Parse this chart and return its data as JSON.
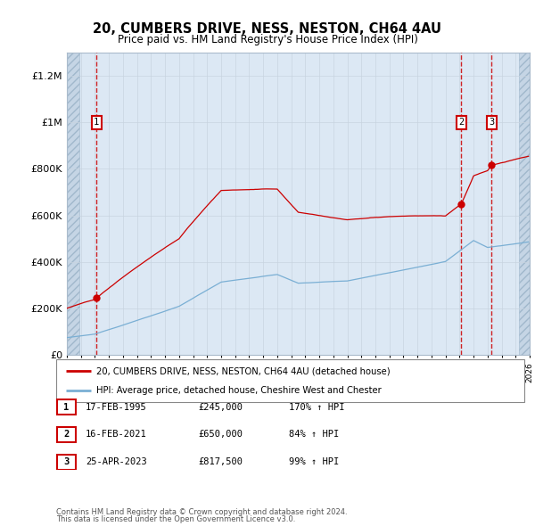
{
  "title": "20, CUMBERS DRIVE, NESS, NESTON, CH64 4AU",
  "subtitle": "Price paid vs. HM Land Registry's House Price Index (HPI)",
  "ylim": [
    0,
    1300000
  ],
  "xlim_year": [
    1993,
    2026
  ],
  "yticks": [
    0,
    200000,
    400000,
    600000,
    800000,
    1000000,
    1200000
  ],
  "ytick_labels": [
    "£0",
    "£200K",
    "£400K",
    "£600K",
    "£800K",
    "£1M",
    "£1.2M"
  ],
  "sales": [
    {
      "label": "1",
      "year": 1995.12,
      "price": 245000,
      "date": "17-FEB-1995",
      "hpi_pct": "170%"
    },
    {
      "label": "2",
      "year": 2021.12,
      "price": 650000,
      "date": "16-FEB-2021",
      "hpi_pct": "84%"
    },
    {
      "label": "3",
      "year": 2023.29,
      "price": 817500,
      "date": "25-APR-2023",
      "hpi_pct": "99%"
    }
  ],
  "property_line_color": "#cc0000",
  "hpi_line_color": "#7aafd4",
  "sale_marker_color": "#cc0000",
  "grid_color": "#c8d4e0",
  "bg_color": "#dce8f4",
  "hatch_bg_color": "#c5d5e5",
  "legend_property": "20, CUMBERS DRIVE, NESS, NESTON, CH64 4AU (detached house)",
  "legend_hpi": "HPI: Average price, detached house, Cheshire West and Chester",
  "footer1": "Contains HM Land Registry data © Crown copyright and database right 2024.",
  "footer2": "This data is licensed under the Open Government Licence v3.0.",
  "table_rows": [
    [
      "1",
      "17-FEB-1995",
      "£245,000",
      "170% ↑ HPI"
    ],
    [
      "2",
      "16-FEB-2021",
      "£650,000",
      "84% ↑ HPI"
    ],
    [
      "3",
      "25-APR-2023",
      "£817,500",
      "99% ↑ HPI"
    ]
  ]
}
